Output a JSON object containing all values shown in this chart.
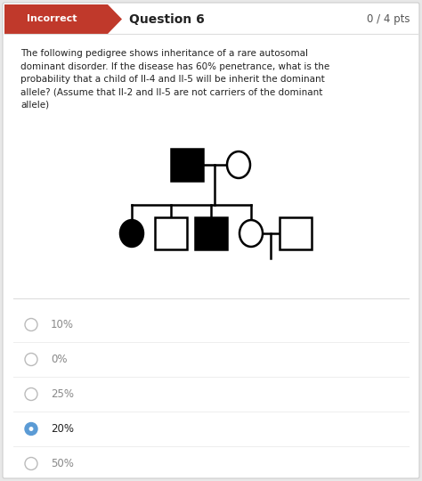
{
  "bg_color": "#e8e8e8",
  "white_panel_color": "#ffffff",
  "header_bg": "#c0392b",
  "header_text": "Incorrect",
  "header_text_color": "#ffffff",
  "question_label": "Question 6",
  "score_label": "0 / 4 pts",
  "question_text_lines": [
    "The following pedigree shows inheritance of a rare autosomal",
    "dominant disorder. If the disease has 60% penetrance, what is the",
    "probability that a child of II-4 and II-5 will be inherit the dominant",
    "allele? (Assume that II-2 and II-5 are not carriers of the dominant",
    "allele)"
  ],
  "options": [
    "10%",
    "0%",
    "25%",
    "20%",
    "50%"
  ],
  "selected_index": 3,
  "fig_w": 4.74,
  "fig_h": 5.4,
  "dpi": 100
}
